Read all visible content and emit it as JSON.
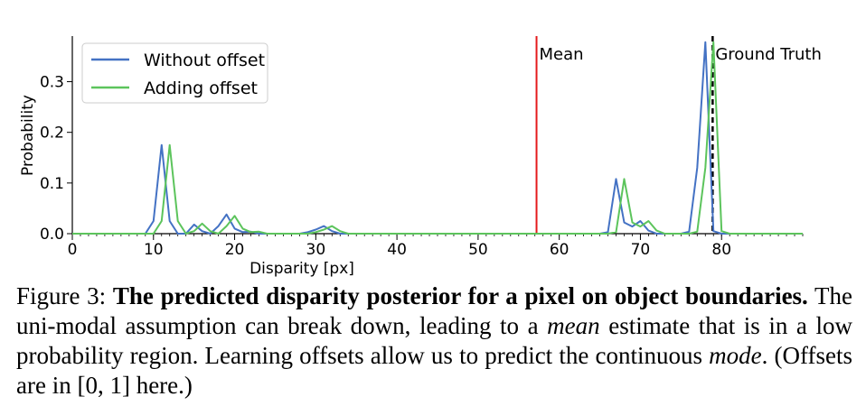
{
  "chart_data": {
    "type": "line",
    "title": "",
    "xlabel": "Disparity [px]",
    "ylabel": "Probability",
    "xlim": [
      0,
      90
    ],
    "ylim": [
      0,
      0.39
    ],
    "xticks": [
      0,
      10,
      20,
      30,
      40,
      50,
      60,
      70,
      80
    ],
    "xtick_labels": [
      "0",
      "10",
      "20",
      "30",
      "40",
      "50",
      "60",
      "70",
      "80"
    ],
    "yticks": [
      0.0,
      0.1,
      0.2,
      0.3
    ],
    "ytick_labels": [
      "0.0",
      "0.1",
      "0.2",
      "0.3"
    ],
    "grid": false,
    "legend_position": "top-left",
    "series": [
      {
        "name": "Without offset",
        "color": "#4472c4",
        "x": [
          0,
          9,
          10,
          11,
          12,
          13,
          14,
          15,
          16,
          17,
          18,
          19,
          20,
          21,
          22,
          23,
          28,
          29,
          30,
          31,
          32,
          33,
          65,
          66,
          67,
          68,
          69,
          70,
          71,
          72,
          75,
          76,
          77,
          78,
          79,
          80,
          90
        ],
        "values": [
          0,
          0,
          0.025,
          0.175,
          0.025,
          0,
          0,
          0.018,
          0.005,
          0,
          0.015,
          0.038,
          0.01,
          0.003,
          0.004,
          0,
          0,
          0.003,
          0.008,
          0.015,
          0.005,
          0,
          0,
          0.003,
          0.108,
          0.022,
          0.014,
          0.025,
          0.006,
          0,
          0,
          0.004,
          0.13,
          0.378,
          0.005,
          0,
          0
        ]
      },
      {
        "name": "Adding offset",
        "color": "#5cc45c",
        "x": [
          0,
          10,
          11,
          12,
          13,
          14,
          15,
          16,
          17,
          18,
          19,
          20,
          21,
          22,
          23,
          24,
          29,
          30,
          31,
          32,
          33,
          34,
          66,
          67,
          68,
          69,
          70,
          71,
          72,
          73,
          76,
          77,
          78,
          79,
          80,
          81,
          90
        ],
        "values": [
          0,
          0,
          0.025,
          0.175,
          0.025,
          0,
          0.005,
          0.02,
          0.005,
          0,
          0.015,
          0.035,
          0.01,
          0.003,
          0.004,
          0,
          0,
          0.003,
          0.008,
          0.015,
          0.005,
          0,
          0,
          0.003,
          0.108,
          0.022,
          0.014,
          0.025,
          0.006,
          0,
          0,
          0.004,
          0.13,
          0.378,
          0.005,
          0,
          0
        ]
      }
    ],
    "vlines": [
      {
        "name": "Mean",
        "x": 57.2,
        "color": "#e41a1c",
        "style": "solid"
      },
      {
        "name": "Ground Truth",
        "x": 78.9,
        "color": "#000000",
        "style": "dashed"
      }
    ]
  },
  "caption": {
    "prefix": "Figure 3: ",
    "bold": "The predicted disparity posterior for a pixel on object boundaries.",
    "text1": " The uni-modal assumption can break down, leading to a ",
    "italic1": "mean",
    "text2": " estimate that is in a low probability region. Learning offsets allow us to predict the continuous ",
    "italic2": "mode",
    "text3": ". (Offsets are in ",
    "math": "[0, 1]",
    "text4": " here.)"
  }
}
